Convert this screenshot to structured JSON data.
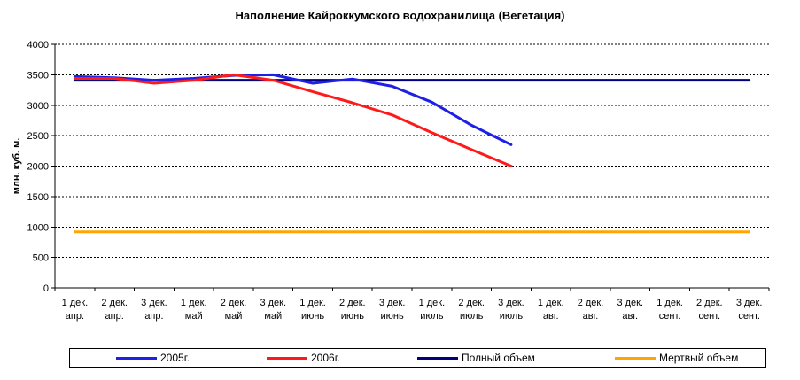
{
  "chart_data": {
    "type": "line",
    "title": "Наполнение Кайроккумского водохранилища (Вегетация)",
    "ylabel": "млн. куб. м.",
    "xlabel": "",
    "ylim": [
      0,
      4000
    ],
    "yticks": [
      0,
      500,
      1000,
      1500,
      2000,
      2500,
      3000,
      3500,
      4000
    ],
    "grid": true,
    "legend_position": "bottom",
    "categories": [
      [
        "1 дек.",
        "апр."
      ],
      [
        "2 дек.",
        "апр."
      ],
      [
        "3 дек.",
        "апр."
      ],
      [
        "1 дек.",
        "май"
      ],
      [
        "2 дек.",
        "май"
      ],
      [
        "3 дек.",
        "май"
      ],
      [
        "1 дек.",
        "июнь"
      ],
      [
        "2 дек.",
        "июнь"
      ],
      [
        "3 дек.",
        "июнь"
      ],
      [
        "1 дек.",
        "июль"
      ],
      [
        "2 дек.",
        "июль"
      ],
      [
        "3 дек.",
        "июль"
      ],
      [
        "1 дек.",
        "авг."
      ],
      [
        "2 дек.",
        "авг."
      ],
      [
        "3 дек.",
        "авг."
      ],
      [
        "1 дек.",
        "сент."
      ],
      [
        "2 дек.",
        "сент."
      ],
      [
        "3 дек.",
        "сент."
      ]
    ],
    "series": [
      {
        "name": "2005г.",
        "color": "#1f1fe6",
        "values": [
          3470,
          3450,
          3410,
          3440,
          3490,
          3500,
          3360,
          3430,
          3310,
          3050,
          2670,
          2350,
          null,
          null,
          null,
          null,
          null,
          null
        ]
      },
      {
        "name": "2006г.",
        "color": "#ff1a1a",
        "values": [
          3440,
          3440,
          3360,
          3410,
          3500,
          3410,
          3220,
          3040,
          2840,
          2550,
          2270,
          2000,
          null,
          null,
          null,
          null,
          null,
          null
        ]
      },
      {
        "name": "Полный объем",
        "color": "#000080",
        "values": [
          3410,
          3410,
          3410,
          3410,
          3410,
          3410,
          3410,
          3410,
          3410,
          3410,
          3410,
          3410,
          3410,
          3410,
          3410,
          3410,
          3410,
          3410
        ]
      },
      {
        "name": "Мертвый объем",
        "color": "#ffa500",
        "values": [
          920,
          920,
          920,
          920,
          920,
          920,
          920,
          920,
          920,
          920,
          920,
          920,
          920,
          920,
          920,
          920,
          920,
          920
        ]
      }
    ]
  }
}
